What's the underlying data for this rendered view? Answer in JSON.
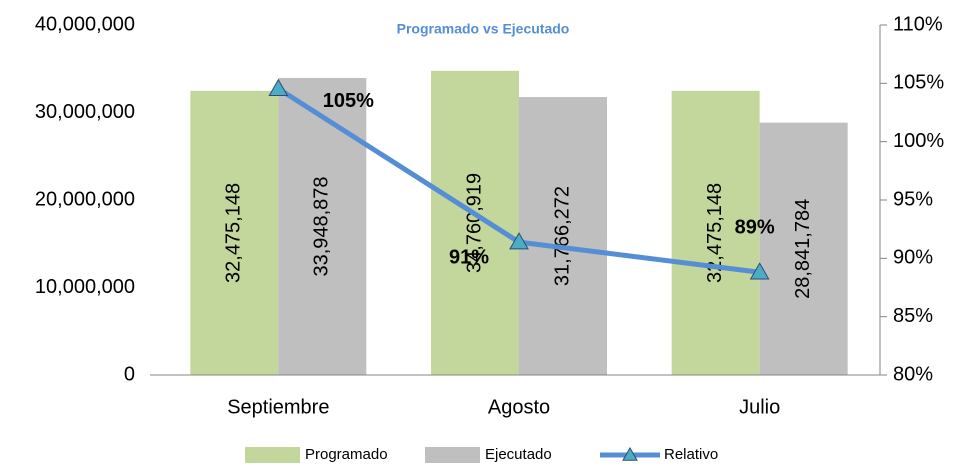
{
  "chart_data": {
    "type": "bar_line",
    "title": "Programado vs Ejecutado",
    "categories": [
      "Septiembre",
      "Agosto",
      "Julio"
    ],
    "series": [
      {
        "name": "Programado",
        "type": "bar",
        "color": "#c3d69b",
        "values": [
          32475148,
          34760919,
          32475148
        ],
        "value_labels": [
          "32,475,148",
          "34,760,919",
          "32,475,148"
        ]
      },
      {
        "name": "Ejecutado",
        "type": "bar",
        "color": "#bfbfbf",
        "values": [
          33948878,
          31766272,
          28841784
        ],
        "value_labels": [
          "33,948,878",
          "31,766,272",
          "28,841,784"
        ]
      },
      {
        "name": "Relativo",
        "type": "line",
        "axis": "y2",
        "color": "#558ed5",
        "marker_color": "#4bacc6",
        "values": [
          104.54,
          91.39,
          88.81
        ],
        "value_labels": [
          "105%",
          "91%",
          "89%"
        ]
      }
    ],
    "ylim": [
      0,
      40000000
    ],
    "yticks": [
      0,
      {
        "value": 10000000,
        "label": "10,000,000"
      },
      {
        "value": 20000000,
        "label": "20,000,000"
      },
      {
        "value": 30000000,
        "label": "30,000,000"
      },
      {
        "value": 40000000,
        "label": "40,000,000"
      }
    ],
    "y2lim": [
      80,
      110
    ],
    "y2ticks": [
      {
        "value": 80,
        "label": "80%"
      },
      {
        "value": 85,
        "label": "85%"
      },
      {
        "value": 90,
        "label": "90%"
      },
      {
        "value": 95,
        "label": "95%"
      },
      {
        "value": 100,
        "label": "100%"
      },
      {
        "value": 105,
        "label": "105%"
      },
      {
        "value": 110,
        "label": "110%"
      }
    ],
    "legend": "bottom"
  }
}
